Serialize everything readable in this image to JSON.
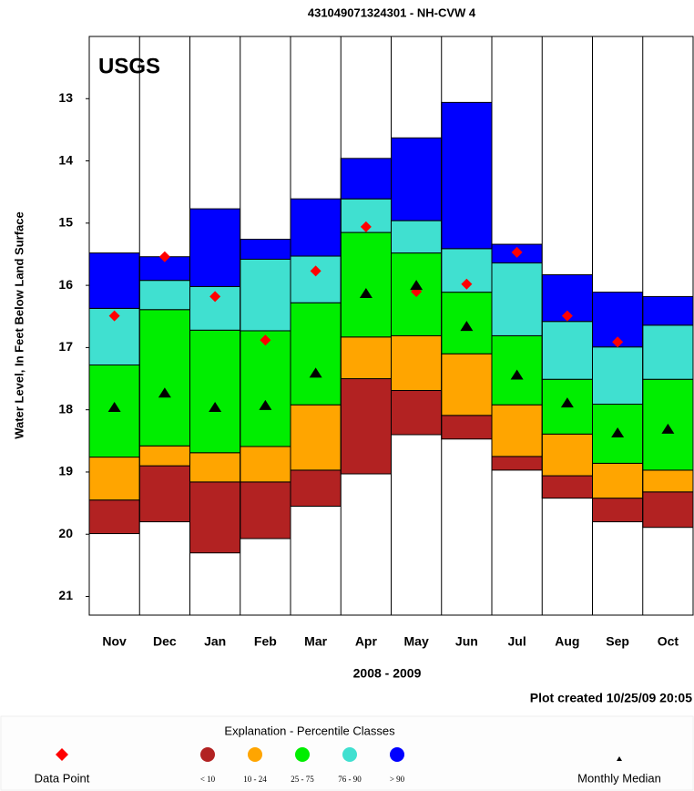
{
  "chart_data": {
    "type": "percentile",
    "title": "431049071324301 - NH-CVW 4",
    "logo": "USGS",
    "y_label": "Water Level, In Feet Below Land Surface",
    "x_label": "2008 - 2009",
    "note": "Plot created 10/25/09 20:05",
    "legend_title": "Explanation - Percentile Classes",
    "categories": [
      "Nov",
      "Dec",
      "Jan",
      "Feb",
      "Mar",
      "Apr",
      "May",
      "Jun",
      "Jul",
      "Aug",
      "Sep",
      "Oct"
    ],
    "ylim": [
      12,
      21.3
    ],
    "y_inverted": true,
    "yticks": [
      13,
      14,
      15,
      16,
      17,
      18,
      19,
      20,
      21
    ],
    "percentile_bounds": [
      [
        19.99,
        19.8,
        20.3,
        20.07,
        19.55,
        19.03,
        18.4,
        18.47,
        18.97,
        19.42,
        19.8,
        19.89
      ],
      [
        19.45,
        18.9,
        19.16,
        19.16,
        18.97,
        17.5,
        17.69,
        18.09,
        18.75,
        19.06,
        19.42,
        19.32
      ],
      [
        18.76,
        18.58,
        18.69,
        18.59,
        17.92,
        16.83,
        16.81,
        17.1,
        17.92,
        18.39,
        18.86,
        18.97
      ],
      [
        17.28,
        16.39,
        16.72,
        16.73,
        16.28,
        15.15,
        15.48,
        16.11,
        16.81,
        17.51,
        17.91,
        17.51
      ],
      [
        16.37,
        15.92,
        16.02,
        15.58,
        15.53,
        14.61,
        14.96,
        15.41,
        15.64,
        16.58,
        16.99,
        16.64
      ],
      [
        15.48,
        15.54,
        14.77,
        15.26,
        14.61,
        13.96,
        13.63,
        13.06,
        15.34,
        15.83,
        16.11,
        16.18
      ]
    ],
    "classes": [
      {
        "label": "< 10",
        "color": "#b22222"
      },
      {
        "label": "10 - 24",
        "color": "#ffa500"
      },
      {
        "label": "25 - 75",
        "color": "#00ee00"
      },
      {
        "label": "76 - 90",
        "color": "#40e0d0"
      },
      {
        "label": "> 90",
        "color": "#0000ff"
      }
    ],
    "series": [
      {
        "name": "Data Point",
        "color": "#ff0000",
        "marker": "diamond",
        "values": [
          16.49,
          15.54,
          16.18,
          16.88,
          15.77,
          15.06,
          16.1,
          15.98,
          15.47,
          16.49,
          16.91,
          null
        ]
      },
      {
        "name": "Monthly Median",
        "color": "#000000",
        "marker": "triangle",
        "values": [
          17.96,
          17.73,
          17.96,
          17.93,
          17.41,
          16.13,
          16.0,
          16.66,
          17.44,
          17.89,
          18.37,
          18.31
        ]
      }
    ]
  }
}
